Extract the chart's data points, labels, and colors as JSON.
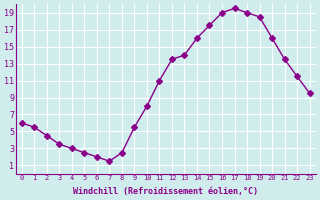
{
  "x": [
    0,
    1,
    2,
    3,
    4,
    5,
    6,
    7,
    8,
    9,
    10,
    11,
    12,
    13,
    14,
    15,
    16,
    17,
    18,
    19,
    20,
    21,
    22,
    23
  ],
  "y": [
    6,
    5.5,
    4.5,
    3.5,
    3,
    2.5,
    2,
    1.5,
    2.5,
    5.5,
    8,
    11,
    13.5,
    14,
    16,
    17.5,
    19,
    19.5,
    19,
    18.5,
    16,
    13.5,
    11.5,
    9.5
  ],
  "line_color": "#8B008B",
  "marker": "D",
  "marker_size": 3,
  "bg_color": "#d0ecec",
  "grid_color": "#ffffff",
  "xlabel": "Windchill (Refroidissement éolien,°C)",
  "xlabel_color": "#8B008B",
  "tick_color": "#8B008B",
  "ylim": [
    0,
    20
  ],
  "xlim": [
    -0.5,
    23.5
  ],
  "yticks": [
    1,
    3,
    5,
    7,
    9,
    11,
    13,
    15,
    17,
    19
  ],
  "xticks": [
    0,
    1,
    2,
    3,
    4,
    5,
    6,
    7,
    8,
    9,
    10,
    11,
    12,
    13,
    14,
    15,
    16,
    17,
    18,
    19,
    20,
    21,
    22,
    23
  ]
}
